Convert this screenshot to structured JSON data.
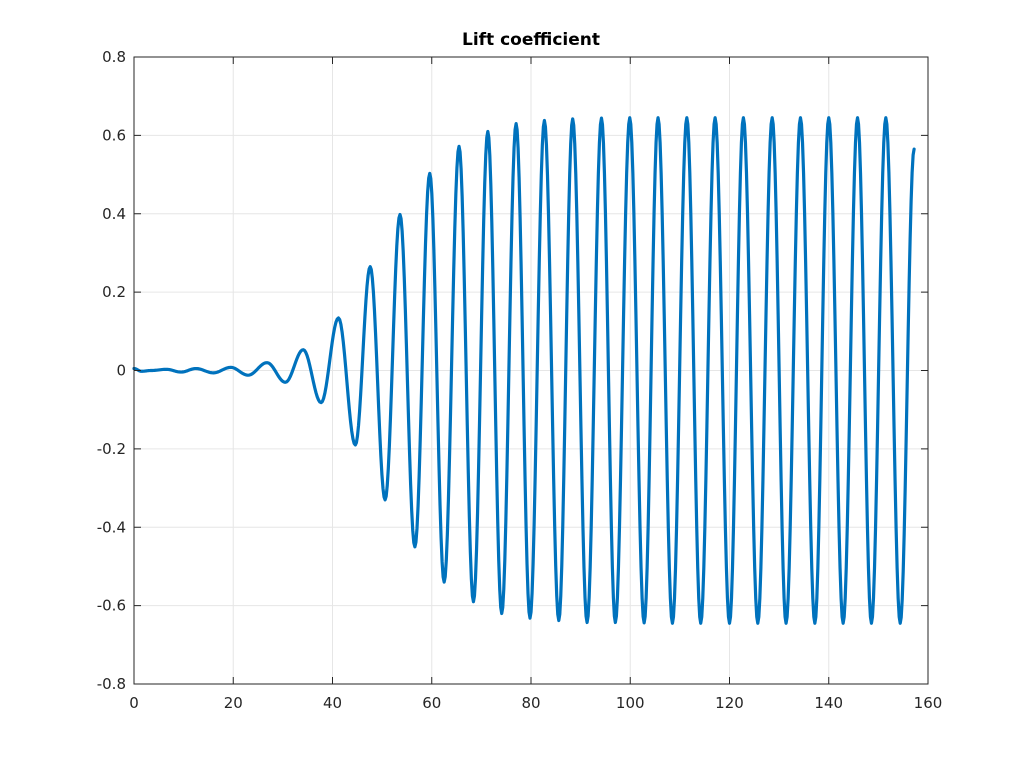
{
  "chart_data": {
    "type": "line",
    "title": "Lift coefficient",
    "xlabel": "",
    "ylabel": "",
    "xlim": [
      0,
      160
    ],
    "ylim": [
      -0.8,
      0.8
    ],
    "xticks": [
      0,
      20,
      40,
      60,
      80,
      100,
      120,
      140,
      160
    ],
    "xtick_labels": [
      "0",
      "20",
      "40",
      "60",
      "80",
      "100",
      "120",
      "140",
      "160"
    ],
    "yticks": [
      -0.8,
      -0.6,
      -0.4,
      -0.2,
      0,
      0.2,
      0.4,
      0.6,
      0.8
    ],
    "ytick_labels": [
      "-0.8",
      "-0.6",
      "-0.4",
      "-0.2",
      "0",
      "0.2",
      "0.4",
      "0.6",
      "0.8"
    ],
    "grid": true,
    "colors": {
      "line": "#0072BD",
      "grid": "#e6e6e6",
      "axes": "#262626"
    },
    "series": [
      {
        "x": [
          0,
          1.5,
          3.5,
          6.5,
          9.5,
          12.5,
          16,
          19.5,
          23,
          26.8,
          30.5,
          34.1,
          37.7,
          41.2,
          44.6,
          47.6,
          50.6,
          53.6,
          56.6,
          59.6,
          62.5,
          65.5,
          68.4,
          71.3,
          74.1,
          77.0,
          79.8,
          82.7,
          85.6,
          88.4,
          91.3,
          94.2,
          97.0,
          99.9,
          102.8,
          105.6,
          108.5,
          111.4,
          114.2,
          117.1,
          120.0,
          122.8,
          125.7,
          128.6,
          131.4,
          134.3,
          137.2,
          140.0,
          142.9,
          145.8,
          148.6,
          151.5,
          154.4,
          157.2
        ],
        "y": [
          0.005,
          -0.002,
          0.0,
          0.003,
          -0.004,
          0.005,
          -0.006,
          0.008,
          -0.012,
          0.02,
          -0.03,
          0.053,
          -0.082,
          0.134,
          -0.19,
          0.265,
          -0.33,
          0.398,
          -0.45,
          0.503,
          -0.54,
          0.572,
          -0.59,
          0.61,
          -0.62,
          0.63,
          -0.632,
          0.638,
          -0.638,
          0.642,
          -0.643,
          0.644,
          -0.643,
          0.645,
          -0.644,
          0.645,
          -0.645,
          0.645,
          -0.645,
          0.645,
          -0.645,
          0.645,
          -0.645,
          0.645,
          -0.645,
          0.645,
          -0.645,
          0.645,
          -0.645,
          0.645,
          -0.645,
          0.645,
          -0.645,
          0.565
        ]
      }
    ]
  }
}
